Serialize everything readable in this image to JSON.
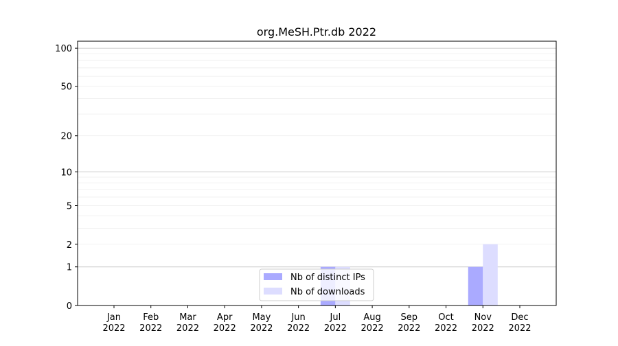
{
  "chart_data": {
    "type": "bar",
    "title": "org.MeSH.Ptr.db 2022",
    "xlabel": "",
    "ylabel": "",
    "y_scale": "log(1+y)",
    "ylim": [
      0,
      113.5
    ],
    "y_ticks": [
      0,
      1,
      2,
      5,
      10,
      20,
      50,
      100
    ],
    "grid": true,
    "legend_placement": "lower-center",
    "categories": [
      "Jan\n2022",
      "Feb\n2022",
      "Mar\n2022",
      "Apr\n2022",
      "May\n2022",
      "Jun\n2022",
      "Jul\n2022",
      "Aug\n2022",
      "Sep\n2022",
      "Oct\n2022",
      "Nov\n2022",
      "Dec\n2022"
    ],
    "series": [
      {
        "name": "Nb of distinct IPs",
        "color": "#aaaaff",
        "values": [
          0,
          0,
          0,
          0,
          0,
          0,
          1,
          0,
          0,
          0,
          1,
          0
        ]
      },
      {
        "name": "Nb of downloads",
        "color": "#ddddff",
        "values": [
          0,
          0,
          0,
          0,
          0,
          0,
          1,
          0,
          0,
          0,
          2,
          0
        ]
      }
    ]
  }
}
